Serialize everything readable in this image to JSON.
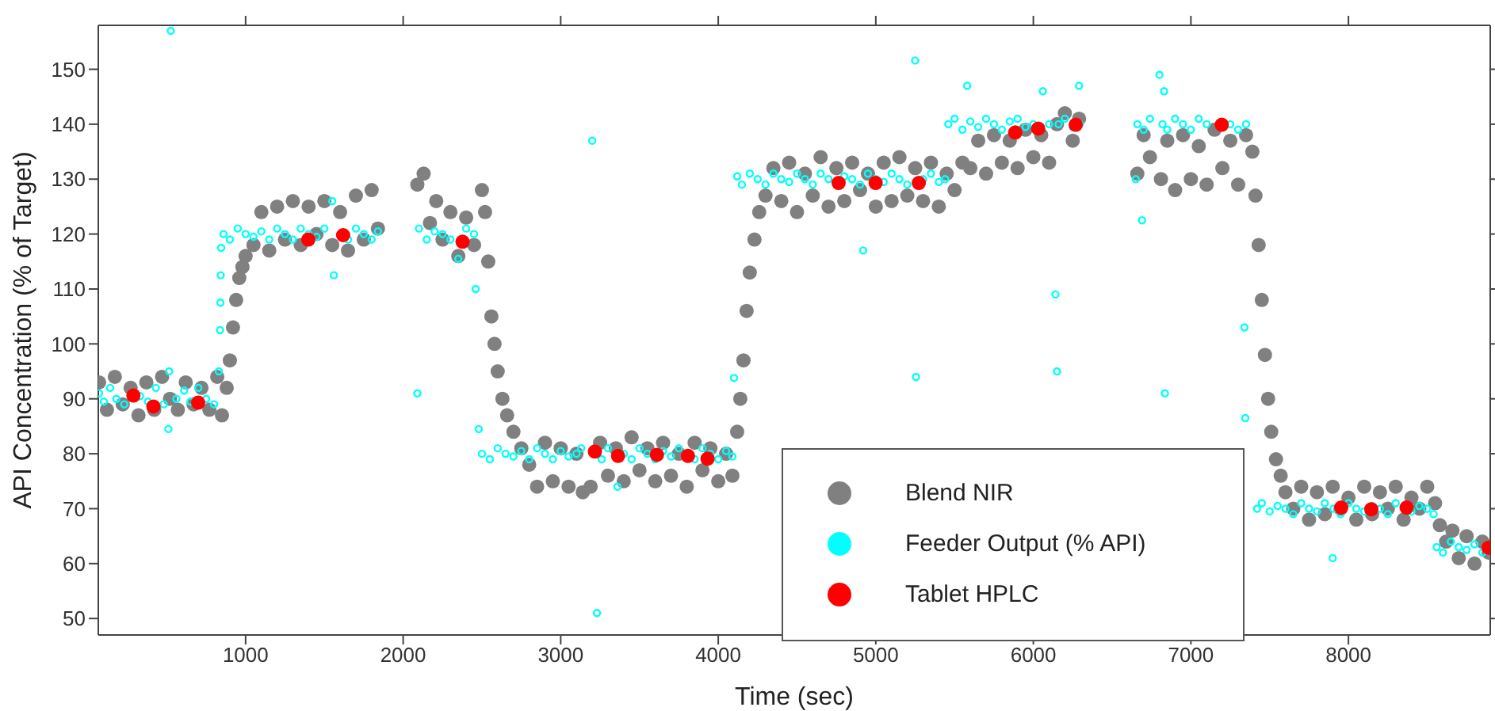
{
  "chart_data": {
    "type": "scatter",
    "xlabel": "Time (sec)",
    "ylabel": "API Concentration (% of Target)",
    "xlim": [
      65,
      8900
    ],
    "xticks": [
      1000,
      2000,
      3000,
      4000,
      5000,
      6000,
      7000,
      8000
    ],
    "ylim": [
      47,
      158
    ],
    "yticks": [
      50,
      60,
      70,
      80,
      90,
      100,
      110,
      120,
      130,
      140,
      150
    ],
    "grid": false,
    "legend": "bottom",
    "marker": "circle",
    "series": [
      {
        "name": "Blend NIR",
        "color": "#808080",
        "x": [
          70,
          120,
          170,
          220,
          270,
          320,
          370,
          420,
          470,
          520,
          570,
          620,
          670,
          720,
          770,
          820,
          850,
          880,
          900,
          920,
          940,
          960,
          980,
          1000,
          1050,
          1100,
          1150,
          1200,
          1250,
          1300,
          1350,
          1400,
          1450,
          1500,
          1550,
          1600,
          1650,
          1700,
          1750,
          1800,
          1840,
          2090,
          2130,
          2170,
          2210,
          2250,
          2300,
          2350,
          2400,
          2450,
          2500,
          2520,
          2540,
          2560,
          2580,
          2600,
          2630,
          2660,
          2700,
          2750,
          2800,
          2850,
          2900,
          2950,
          3000,
          3050,
          3100,
          3140,
          3190,
          3250,
          3300,
          3350,
          3400,
          3450,
          3500,
          3550,
          3600,
          3650,
          3700,
          3750,
          3800,
          3850,
          3900,
          3950,
          4000,
          4050,
          4090,
          4120,
          4140,
          4160,
          4180,
          4200,
          4230,
          4260,
          4300,
          4350,
          4400,
          4450,
          4500,
          4550,
          4600,
          4650,
          4700,
          4750,
          4800,
          4850,
          4900,
          4950,
          5000,
          5050,
          5100,
          5150,
          5200,
          5250,
          5300,
          5350,
          5400,
          5450,
          5500,
          5550,
          5600,
          5650,
          5700,
          5750,
          5800,
          5850,
          5900,
          5950,
          6000,
          6050,
          6100,
          6150,
          6200,
          6250,
          6290,
          6660,
          6700,
          6740,
          6810,
          6850,
          6900,
          6950,
          7000,
          7050,
          7100,
          7150,
          7200,
          7250,
          7300,
          7350,
          7390,
          7410,
          7430,
          7450,
          7470,
          7490,
          7510,
          7540,
          7570,
          7600,
          7650,
          7700,
          7750,
          7800,
          7850,
          7900,
          7950,
          8000,
          8050,
          8100,
          8150,
          8200,
          8250,
          8300,
          8350,
          8400,
          8450,
          8500,
          8550,
          8580,
          8620,
          8660,
          8700,
          8750,
          8800,
          8850,
          8890
        ],
        "values": [
          93,
          88,
          94,
          89,
          92,
          87,
          93,
          88,
          94,
          90,
          88,
          93,
          89,
          92,
          88,
          94,
          87,
          92,
          97,
          103,
          108,
          112,
          114,
          116,
          118,
          124,
          117,
          125,
          119,
          126,
          118,
          125,
          120,
          126,
          118,
          124,
          117,
          127,
          119,
          128,
          121,
          129,
          131,
          122,
          126,
          119,
          124,
          116,
          123,
          118,
          128,
          124,
          115,
          105,
          100,
          95,
          90,
          87,
          84,
          81,
          78,
          74,
          82,
          75,
          81,
          74,
          80,
          73,
          74,
          82,
          76,
          81,
          75,
          83,
          77,
          81,
          75,
          82,
          76,
          80,
          74,
          82,
          77,
          81,
          75,
          80,
          76,
          84,
          90,
          97,
          106,
          113,
          119,
          124,
          127,
          132,
          126,
          133,
          124,
          131,
          127,
          134,
          125,
          132,
          126,
          133,
          128,
          131,
          125,
          133,
          126,
          134,
          127,
          132,
          126,
          133,
          125,
          131,
          128,
          133,
          132,
          137,
          131,
          138,
          133,
          137,
          132,
          139,
          134,
          138,
          133,
          140,
          142,
          137,
          141,
          131,
          138,
          134,
          130,
          137,
          128,
          138,
          130,
          136,
          129,
          139,
          132,
          137,
          129,
          138,
          135,
          127,
          118,
          108,
          98,
          90,
          84,
          79,
          76,
          73,
          70,
          74,
          68,
          73,
          69,
          74,
          70,
          72,
          68,
          74,
          69,
          73,
          70,
          74,
          68,
          72,
          70,
          74,
          71,
          67,
          64,
          66,
          61,
          65,
          60,
          64,
          62
        ]
      },
      {
        "name": "Feeder Output (% API)",
        "color": "#00ffff",
        "x": [
          70,
          100,
          140,
          180,
          230,
          330,
          380,
          430,
          480,
          510,
          515,
          525,
          560,
          610,
          650,
          700,
          750,
          800,
          830,
          838,
          840,
          842,
          845,
          860,
          900,
          950,
          1000,
          1050,
          1100,
          1150,
          1200,
          1250,
          1300,
          1350,
          1400,
          1450,
          1500,
          1550,
          1560,
          1650,
          1700,
          1750,
          1800,
          1840,
          2090,
          2100,
          2150,
          2200,
          2250,
          2300,
          2350,
          2400,
          2450,
          2460,
          2480,
          2500,
          2550,
          2600,
          2650,
          2700,
          2750,
          2800,
          2850,
          2900,
          2950,
          3000,
          3050,
          3100,
          3130,
          3200,
          3230,
          3260,
          3300,
          3360,
          3400,
          3450,
          3500,
          3550,
          3600,
          3650,
          3700,
          3750,
          3850,
          3900,
          3950,
          4000,
          4050,
          4090,
          4100,
          4120,
          4150,
          4200,
          4250,
          4300,
          4350,
          4400,
          4450,
          4500,
          4550,
          4600,
          4650,
          4700,
          4800,
          4850,
          4900,
          4920,
          4950,
          5000,
          5050,
          5100,
          5150,
          5200,
          5250,
          5255,
          5300,
          5350,
          5400,
          5440,
          5460,
          5500,
          5550,
          5580,
          5600,
          5650,
          5700,
          5750,
          5800,
          5850,
          5900,
          5950,
          6000,
          6060,
          6100,
          6140,
          6150,
          6160,
          6200,
          6250,
          6290,
          6295,
          6650,
          6660,
          6690,
          6700,
          6740,
          6800,
          6820,
          6830,
          6835,
          6850,
          6900,
          6950,
          7000,
          7050,
          7100,
          7250,
          7300,
          7340,
          7345,
          7350,
          7420,
          7450,
          7500,
          7550,
          7600,
          7650,
          7700,
          7750,
          7800,
          7850,
          7900,
          7905,
          7950,
          8000,
          8050,
          8100,
          8150,
          8200,
          8250,
          8300,
          8400,
          8450,
          8500,
          8540,
          8560,
          8600,
          8650,
          8700,
          8750,
          8800,
          8850
        ],
        "values": [
          91,
          89.5,
          92,
          90,
          89,
          90.5,
          89.5,
          92,
          89,
          84.5,
          95,
          157,
          90,
          91.5,
          89.5,
          92,
          90,
          89,
          95,
          102.5,
          107.5,
          112.5,
          117.5,
          120,
          119,
          121,
          120,
          119.5,
          120.5,
          119,
          121,
          120,
          119,
          121,
          120,
          119.5,
          121,
          126,
          112.5,
          119,
          121,
          120,
          119,
          120.5,
          91,
          121,
          119,
          120.5,
          120,
          119,
          115.5,
          121,
          120,
          110,
          84.5,
          80,
          79,
          81,
          80,
          79.5,
          80.5,
          79,
          81,
          80,
          79,
          80.5,
          79.5,
          80,
          81,
          137,
          51,
          79,
          81,
          74,
          80,
          79,
          81,
          80,
          79,
          80.5,
          79.5,
          81,
          79,
          81,
          80,
          79,
          80.5,
          79.5,
          93.8,
          130.5,
          129,
          131,
          130,
          129,
          131,
          130,
          129.5,
          131,
          130,
          129,
          131,
          130,
          130.5,
          130,
          129,
          117,
          131,
          130,
          129.5,
          131,
          130,
          129,
          151.6,
          94,
          130,
          131,
          129.5,
          130,
          140,
          141,
          139,
          147,
          140.5,
          139.5,
          141,
          140,
          139,
          140.5,
          141,
          139.5,
          140,
          146,
          140,
          109,
          95,
          140,
          141,
          139.5,
          147,
          140,
          130,
          140,
          122.5,
          139,
          141,
          149,
          140,
          146,
          91,
          139,
          141,
          140,
          139,
          141,
          140,
          140,
          139,
          103,
          86.5,
          140,
          70,
          71,
          69.5,
          70.5,
          70,
          69,
          71,
          70,
          69.5,
          71,
          61,
          70,
          69,
          71,
          70,
          69.5,
          70.5,
          70,
          69,
          71,
          69.5,
          70.5,
          70,
          69,
          63,
          62,
          64,
          63,
          62.5,
          63.5,
          62
        ]
      },
      {
        "name": "Tablet HPLC",
        "color": "#ff0000",
        "x": [
          288,
          415,
          699,
          1398,
          1619,
          2377,
          3217,
          3364,
          3611,
          3808,
          3932,
          4764,
          4999,
          5273,
          5885,
          6031,
          6269,
          7196,
          7954,
          8145,
          8369,
          8890
        ],
        "values": [
          90.6,
          88.6,
          89.3,
          119.0,
          119.8,
          118.6,
          80.4,
          79.6,
          79.8,
          79.6,
          79.1,
          129.3,
          129.3,
          129.3,
          138.5,
          139.2,
          139.9,
          139.9,
          70.2,
          69.9,
          70.2,
          62.9
        ]
      }
    ]
  }
}
